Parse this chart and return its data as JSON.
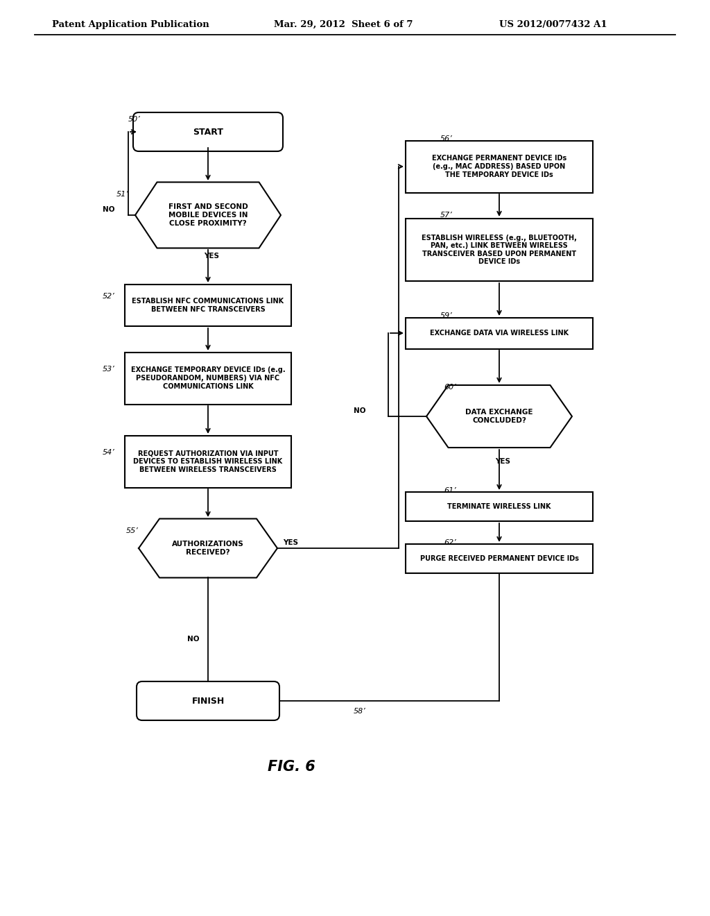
{
  "bg_color": "#ffffff",
  "header_left": "Patent Application Publication",
  "header_mid": "Mar. 29, 2012  Sheet 6 of 7",
  "header_right": "US 2012/0077432 A1",
  "fig_label": "FIG. 6"
}
